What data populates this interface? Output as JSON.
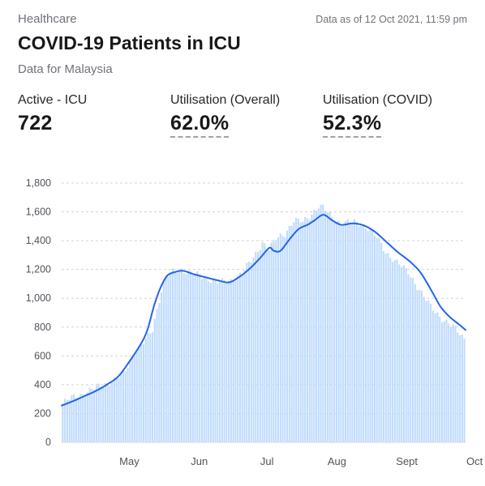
{
  "header": {
    "category": "Healthcare",
    "as_of": "Data as of 12 Oct 2021, 11:59 pm",
    "title": "COVID-19 Patients in ICU",
    "subtitle": "Data for Malaysia"
  },
  "stats": [
    {
      "label": "Active - ICU",
      "value": "722"
    },
    {
      "label": "Utilisation (Overall)",
      "value": "62.0%"
    },
    {
      "label": "Utilisation (COVID)",
      "value": "52.3%"
    }
  ],
  "colors": {
    "bar": "#bfdbfe",
    "line": "#2563eb",
    "grid": "#d4d4d8"
  },
  "chart_data": {
    "type": "bar",
    "title": "",
    "xlabel": "",
    "ylabel": "",
    "ylim": [
      0,
      1800
    ],
    "yticks": [
      0,
      200,
      400,
      600,
      800,
      "1,000",
      "1,200",
      "1,400",
      "1,600",
      "1,800"
    ],
    "ytick_values": [
      0,
      200,
      400,
      600,
      800,
      1000,
      1200,
      1400,
      1600,
      1800
    ],
    "xticks": [
      "May",
      "Jun",
      "Jul",
      "Aug",
      "Sept",
      "Oct"
    ],
    "xtick_dates": [
      "2021-05-01",
      "2021-06-01",
      "2021-07-01",
      "2021-08-01",
      "2021-09-01",
      "2021-10-01"
    ],
    "date_range": [
      "2021-04-16",
      "2021-10-12"
    ],
    "grid": "horizontal-dashed",
    "series": [
      {
        "kind": "bar",
        "points": [
          [
            "2021-04-16",
            270
          ],
          [
            "2021-04-20",
            310
          ],
          [
            "2021-04-25",
            335
          ],
          [
            "2021-05-01",
            380
          ],
          [
            "2021-05-06",
            410
          ],
          [
            "2021-05-10",
            440
          ],
          [
            "2021-05-14",
            500
          ],
          [
            "2021-05-18",
            620
          ],
          [
            "2021-05-22",
            690
          ],
          [
            "2021-05-26",
            780
          ],
          [
            "2021-05-30",
            1060
          ],
          [
            "2021-06-01",
            1150
          ],
          [
            "2021-06-04",
            1180
          ],
          [
            "2021-06-08",
            1200
          ],
          [
            "2021-06-12",
            1180
          ],
          [
            "2021-06-16",
            1150
          ],
          [
            "2021-06-20",
            1135
          ],
          [
            "2021-06-25",
            1110
          ],
          [
            "2021-06-30",
            1120
          ],
          [
            "2021-07-05",
            1180
          ],
          [
            "2021-07-10",
            1280
          ],
          [
            "2021-07-14",
            1390
          ],
          [
            "2021-07-17",
            1340
          ],
          [
            "2021-07-20",
            1410
          ],
          [
            "2021-07-24",
            1450
          ],
          [
            "2021-07-28",
            1540
          ],
          [
            "2021-08-01",
            1530
          ],
          [
            "2021-08-04",
            1570
          ],
          [
            "2021-08-08",
            1640
          ],
          [
            "2021-08-10",
            1630
          ],
          [
            "2021-08-14",
            1560
          ],
          [
            "2021-08-18",
            1520
          ],
          [
            "2021-08-22",
            1530
          ],
          [
            "2021-08-26",
            1520
          ],
          [
            "2021-08-30",
            1490
          ],
          [
            "2021-09-03",
            1420
          ],
          [
            "2021-09-07",
            1320
          ],
          [
            "2021-09-12",
            1250
          ],
          [
            "2021-09-17",
            1180
          ],
          [
            "2021-09-22",
            1060
          ],
          [
            "2021-09-27",
            940
          ],
          [
            "2021-10-02",
            860
          ],
          [
            "2021-10-07",
            800
          ],
          [
            "2021-10-12",
            722
          ]
        ]
      },
      {
        "kind": "line",
        "points": [
          [
            "2021-04-16",
            255
          ],
          [
            "2021-04-21",
            285
          ],
          [
            "2021-04-26",
            320
          ],
          [
            "2021-05-01",
            355
          ],
          [
            "2021-05-06",
            400
          ],
          [
            "2021-05-11",
            455
          ],
          [
            "2021-05-16",
            560
          ],
          [
            "2021-05-21",
            680
          ],
          [
            "2021-05-24",
            780
          ],
          [
            "2021-05-27",
            950
          ],
          [
            "2021-05-30",
            1080
          ],
          [
            "2021-06-02",
            1160
          ],
          [
            "2021-06-06",
            1185
          ],
          [
            "2021-06-09",
            1190
          ],
          [
            "2021-06-14",
            1165
          ],
          [
            "2021-06-19",
            1145
          ],
          [
            "2021-06-24",
            1125
          ],
          [
            "2021-06-29",
            1110
          ],
          [
            "2021-07-03",
            1140
          ],
          [
            "2021-07-08",
            1200
          ],
          [
            "2021-07-13",
            1280
          ],
          [
            "2021-07-17",
            1350
          ],
          [
            "2021-07-19",
            1330
          ],
          [
            "2021-07-22",
            1330
          ],
          [
            "2021-07-26",
            1410
          ],
          [
            "2021-07-30",
            1480
          ],
          [
            "2021-08-03",
            1510
          ],
          [
            "2021-08-06",
            1540
          ],
          [
            "2021-08-10",
            1580
          ],
          [
            "2021-08-14",
            1540
          ],
          [
            "2021-08-18",
            1510
          ],
          [
            "2021-08-23",
            1520
          ],
          [
            "2021-08-28",
            1505
          ],
          [
            "2021-09-02",
            1460
          ],
          [
            "2021-09-07",
            1390
          ],
          [
            "2021-09-12",
            1320
          ],
          [
            "2021-09-17",
            1260
          ],
          [
            "2021-09-22",
            1180
          ],
          [
            "2021-09-27",
            1050
          ],
          [
            "2021-10-01",
            940
          ],
          [
            "2021-10-05",
            870
          ],
          [
            "2021-10-09",
            820
          ],
          [
            "2021-10-12",
            780
          ]
        ]
      }
    ]
  }
}
